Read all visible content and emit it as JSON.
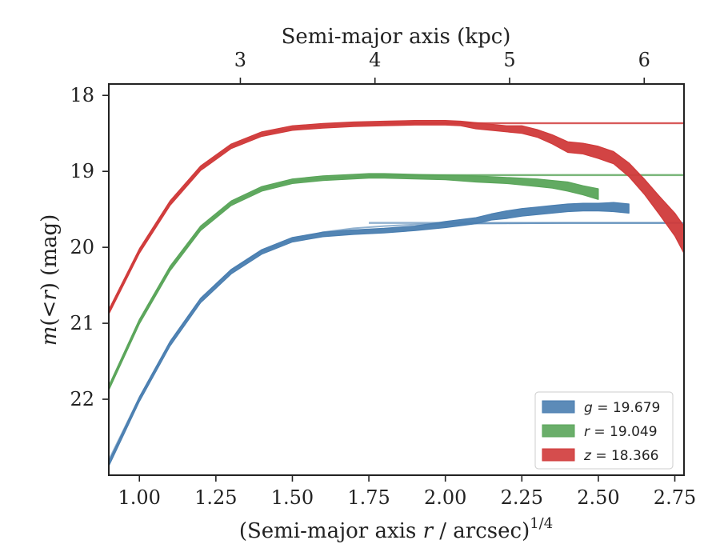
{
  "chart_data": {
    "type": "line",
    "xlabel": "(Semi-major axis r / arcsec)^{1/4}",
    "xlabel_parts": [
      "(Semi-major axis ",
      "r",
      " / arcsec)",
      "1/4"
    ],
    "ylabel": "m(<r) (mag)",
    "ylabel_parts": [
      "m",
      "(<",
      "r",
      ") (mag)"
    ],
    "top_xlabel": "Semi-major axis (kpc)",
    "xlim": [
      0.9,
      2.78
    ],
    "ylim": [
      23.0,
      17.85
    ],
    "y_inverted": true,
    "x_ticks": [
      1.0,
      1.25,
      1.5,
      1.75,
      2.0,
      2.25,
      2.5,
      2.75
    ],
    "x_tick_labels": [
      "1.00",
      "1.25",
      "1.50",
      "1.75",
      "2.00",
      "2.25",
      "2.50",
      "2.75"
    ],
    "y_ticks": [
      18,
      19,
      20,
      21,
      22
    ],
    "y_tick_labels": [
      "18",
      "19",
      "20",
      "21",
      "22"
    ],
    "top_ticks_kpc": [
      3,
      4,
      5,
      6
    ],
    "top_tick_labels": [
      "3",
      "4",
      "5",
      "6"
    ],
    "top_tick_positions_x": [
      1.33,
      1.77,
      2.21,
      2.65
    ],
    "legend_location": "lower right",
    "grid": false,
    "series": [
      {
        "name": "g = 19.679",
        "legend_math": [
          "g",
          " = 19.679"
        ],
        "color": "#4a7eb0",
        "asymptote": 19.679,
        "asymptote_x_start": 1.75,
        "model_x": [
          0.9,
          1.0,
          1.1,
          1.2,
          1.3,
          1.4,
          1.5,
          1.6,
          1.7,
          1.8,
          1.9,
          2.0,
          2.2,
          2.4,
          2.6,
          2.78
        ],
        "model_y": [
          22.8,
          21.98,
          21.25,
          20.68,
          20.3,
          20.05,
          19.9,
          19.8,
          19.75,
          19.72,
          19.7,
          19.69,
          19.685,
          19.68,
          19.679,
          19.679
        ],
        "x": [
          0.9,
          1.0,
          1.1,
          1.2,
          1.3,
          1.4,
          1.5,
          1.6,
          1.7,
          1.8,
          1.9,
          2.0,
          2.1,
          2.15,
          2.2,
          2.25,
          2.3,
          2.35,
          2.4,
          2.45,
          2.5,
          2.55,
          2.6
        ],
        "y": [
          22.85,
          22.0,
          21.27,
          20.7,
          20.32,
          20.06,
          19.9,
          19.83,
          19.8,
          19.78,
          19.75,
          19.7,
          19.65,
          19.6,
          19.57,
          19.54,
          19.52,
          19.5,
          19.48,
          19.47,
          19.47,
          19.47,
          19.49
        ],
        "band": [
          0.03,
          0.03,
          0.03,
          0.03,
          0.03,
          0.03,
          0.03,
          0.03,
          0.03,
          0.03,
          0.03,
          0.04,
          0.04,
          0.04,
          0.05,
          0.05,
          0.05,
          0.05,
          0.05,
          0.05,
          0.05,
          0.06,
          0.06
        ]
      },
      {
        "name": "r = 19.049",
        "legend_math": [
          "r",
          " = 19.049"
        ],
        "color": "#5aa55a",
        "asymptote": 19.049,
        "asymptote_x_start": 1.75,
        "model_x": [
          0.9,
          1.0,
          1.1,
          1.2,
          1.3,
          1.4,
          1.5,
          1.6,
          1.7,
          1.8,
          1.9,
          2.0,
          2.2,
          2.4,
          2.6,
          2.78
        ],
        "model_y": [
          21.85,
          20.98,
          20.28,
          19.75,
          19.42,
          19.23,
          19.13,
          19.09,
          19.07,
          19.06,
          19.055,
          19.052,
          19.05,
          19.049,
          19.049,
          19.049
        ],
        "x": [
          0.9,
          1.0,
          1.1,
          1.2,
          1.3,
          1.4,
          1.5,
          1.6,
          1.7,
          1.75,
          1.8,
          1.9,
          2.0,
          2.1,
          2.2,
          2.3,
          2.35,
          2.4,
          2.45,
          2.5
        ],
        "y": [
          21.85,
          20.98,
          20.28,
          19.75,
          19.42,
          19.23,
          19.13,
          19.09,
          19.07,
          19.06,
          19.06,
          19.07,
          19.08,
          19.1,
          19.12,
          19.15,
          19.17,
          19.2,
          19.25,
          19.3
        ],
        "band": [
          0.03,
          0.03,
          0.03,
          0.03,
          0.03,
          0.03,
          0.03,
          0.03,
          0.03,
          0.03,
          0.03,
          0.03,
          0.03,
          0.04,
          0.04,
          0.05,
          0.05,
          0.06,
          0.06,
          0.07
        ]
      },
      {
        "name": "z = 18.366",
        "legend_math": [
          "z",
          " = 18.366"
        ],
        "color": "#d03a3a",
        "asymptote": 18.366,
        "asymptote_x_start": 1.8,
        "model_x": [
          0.9,
          1.0,
          1.1,
          1.2,
          1.3,
          1.4,
          1.5,
          1.6,
          1.7,
          1.8,
          1.9,
          2.0,
          2.2,
          2.4,
          2.6,
          2.78
        ],
        "model_y": [
          20.85,
          20.05,
          19.42,
          18.96,
          18.67,
          18.51,
          18.43,
          18.4,
          18.38,
          18.37,
          18.368,
          18.367,
          18.366,
          18.366,
          18.366,
          18.366
        ],
        "x": [
          0.9,
          1.0,
          1.1,
          1.2,
          1.3,
          1.4,
          1.5,
          1.6,
          1.7,
          1.8,
          1.9,
          2.0,
          2.05,
          2.1,
          2.15,
          2.2,
          2.25,
          2.3,
          2.35,
          2.4,
          2.45,
          2.5,
          2.55,
          2.6,
          2.65,
          2.7,
          2.75,
          2.78
        ],
        "y": [
          20.85,
          20.05,
          19.42,
          18.96,
          18.67,
          18.51,
          18.43,
          18.4,
          18.38,
          18.37,
          18.36,
          18.36,
          18.37,
          18.4,
          18.42,
          18.44,
          18.45,
          18.5,
          18.58,
          18.68,
          18.7,
          18.75,
          18.82,
          18.98,
          19.2,
          19.45,
          19.7,
          19.9
        ],
        "band": [
          0.03,
          0.03,
          0.03,
          0.03,
          0.03,
          0.03,
          0.03,
          0.03,
          0.03,
          0.03,
          0.03,
          0.03,
          0.03,
          0.04,
          0.04,
          0.04,
          0.05,
          0.05,
          0.06,
          0.07,
          0.07,
          0.08,
          0.08,
          0.09,
          0.1,
          0.12,
          0.15,
          0.18
        ]
      }
    ]
  }
}
